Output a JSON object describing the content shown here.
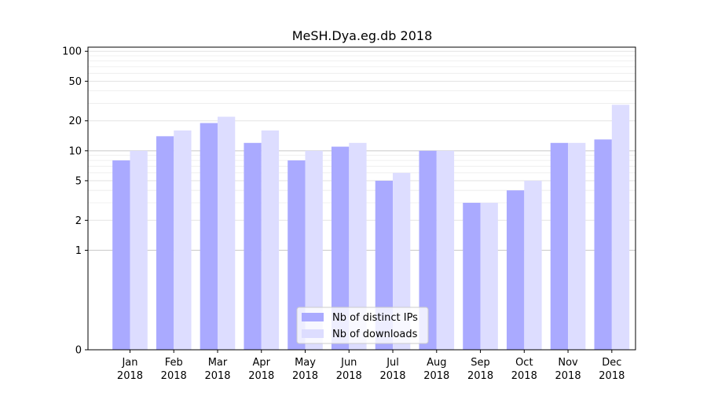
{
  "chart_data": {
    "type": "bar",
    "title": "MeSH.Dya.eg.db 2018",
    "xlabel": "",
    "ylabel": "",
    "y_scale": "symlog",
    "ylim": [
      0,
      110
    ],
    "y_ticks": [
      {
        "value": 0,
        "label": "0"
      },
      {
        "value": 1,
        "label": "1"
      },
      {
        "value": 2,
        "label": "2"
      },
      {
        "value": 5,
        "label": "5"
      },
      {
        "value": 10,
        "label": "10"
      },
      {
        "value": 20,
        "label": "20"
      },
      {
        "value": 50,
        "label": "50"
      },
      {
        "value": 100,
        "label": "100"
      }
    ],
    "categories": [
      {
        "month": "Jan",
        "year": "2018"
      },
      {
        "month": "Feb",
        "year": "2018"
      },
      {
        "month": "Mar",
        "year": "2018"
      },
      {
        "month": "Apr",
        "year": "2018"
      },
      {
        "month": "May",
        "year": "2018"
      },
      {
        "month": "Jun",
        "year": "2018"
      },
      {
        "month": "Jul",
        "year": "2018"
      },
      {
        "month": "Aug",
        "year": "2018"
      },
      {
        "month": "Sep",
        "year": "2018"
      },
      {
        "month": "Oct",
        "year": "2018"
      },
      {
        "month": "Nov",
        "year": "2018"
      },
      {
        "month": "Dec",
        "year": "2018"
      }
    ],
    "series": [
      {
        "name": "Nb of distinct IPs",
        "color": "#aaaaff",
        "values": [
          8,
          14,
          19,
          12,
          8,
          11,
          5,
          10,
          3,
          4,
          12,
          13
        ]
      },
      {
        "name": "Nb of downloads",
        "color": "#ddddff",
        "values": [
          10,
          16,
          22,
          16,
          10,
          12,
          6,
          10,
          3,
          5,
          12,
          29
        ]
      }
    ],
    "grid": true,
    "legend_position": "bottom-center"
  }
}
